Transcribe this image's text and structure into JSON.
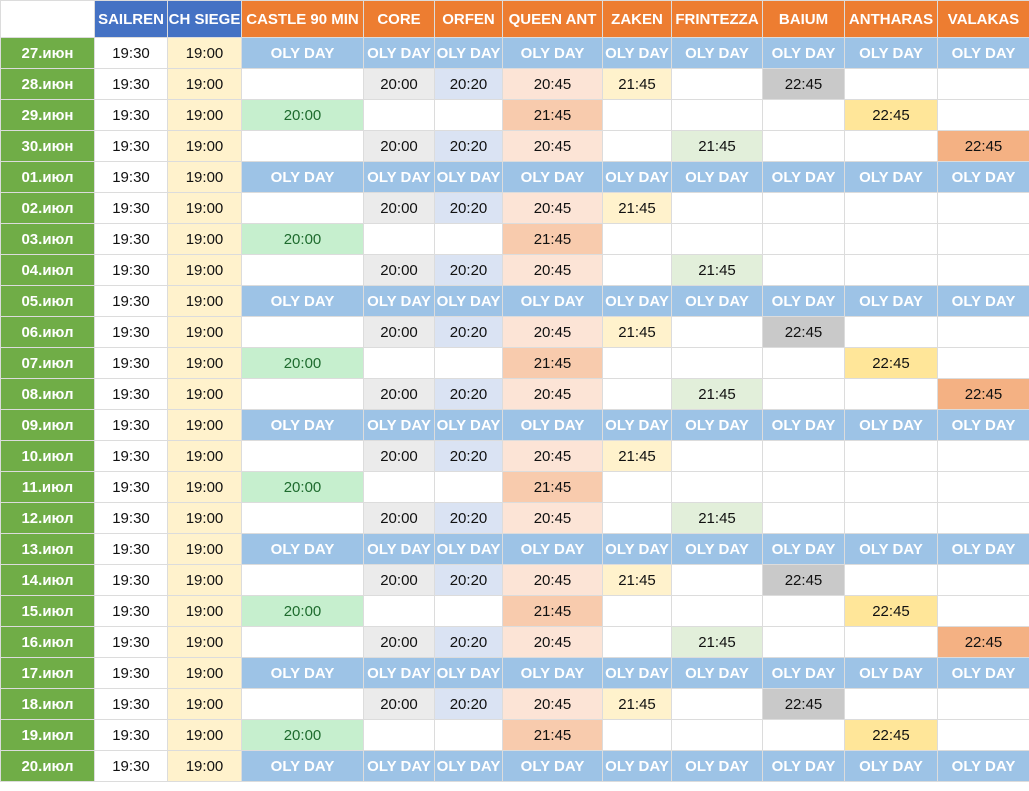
{
  "header": {
    "columns": [
      {
        "label": "SAILREN",
        "color": "#4472c4"
      },
      {
        "label": "CH SIEGE",
        "color": "#4472c4"
      },
      {
        "label": "CASTLE 90 MIN",
        "color": "#ed7d31"
      },
      {
        "label": "CORE",
        "color": "#ed7d31"
      },
      {
        "label": "ORFEN",
        "color": "#ed7d31"
      },
      {
        "label": "QUEEN ANT",
        "color": "#ed7d31"
      },
      {
        "label": "ZAKEN",
        "color": "#ed7d31"
      },
      {
        "label": "FRINTEZZA",
        "color": "#ed7d31"
      },
      {
        "label": "BAIUM",
        "color": "#ed7d31"
      },
      {
        "label": "ANTHARAS",
        "color": "#ed7d31"
      },
      {
        "label": "VALAKAS",
        "color": "#ed7d31"
      }
    ]
  },
  "sailren_time": "19:30",
  "siege_time": "19:00",
  "oly_label": "OLY DAY",
  "rows": [
    {
      "date": "27.июн",
      "pattern": "oly"
    },
    {
      "date": "28.июн",
      "pattern": "A"
    },
    {
      "date": "29.июн",
      "pattern": "B"
    },
    {
      "date": "30.июн",
      "pattern": "C"
    },
    {
      "date": "01.июл",
      "pattern": "oly"
    },
    {
      "date": "02.июл",
      "pattern": "A2"
    },
    {
      "date": "03.июл",
      "pattern": "B2"
    },
    {
      "date": "04.июл",
      "pattern": "C2"
    },
    {
      "date": "05.июл",
      "pattern": "oly"
    },
    {
      "date": "06.июл",
      "pattern": "A"
    },
    {
      "date": "07.июл",
      "pattern": "B"
    },
    {
      "date": "08.июл",
      "pattern": "C"
    },
    {
      "date": "09.июл",
      "pattern": "oly"
    },
    {
      "date": "10.июл",
      "pattern": "A2"
    },
    {
      "date": "11.июл",
      "pattern": "B2"
    },
    {
      "date": "12.июл",
      "pattern": "C2"
    },
    {
      "date": "13.июл",
      "pattern": "oly"
    },
    {
      "date": "14.июл",
      "pattern": "A"
    },
    {
      "date": "15.июл",
      "pattern": "B"
    },
    {
      "date": "16.июл",
      "pattern": "C"
    },
    {
      "date": "17.июл",
      "pattern": "oly"
    },
    {
      "date": "18.июл",
      "pattern": "A"
    },
    {
      "date": "19.июл",
      "pattern": "B"
    },
    {
      "date": "20.июл",
      "pattern": "oly"
    }
  ],
  "patterns": {
    "A": {
      "castle": "",
      "core": "20:00",
      "orfen": "20:20",
      "queen_ant": "20:45",
      "zaken": "21:45",
      "frintezza": "",
      "baium": "22:45",
      "antharas": "",
      "valakas": ""
    },
    "A2": {
      "castle": "",
      "core": "20:00",
      "orfen": "20:20",
      "queen_ant": "20:45",
      "zaken": "21:45",
      "frintezza": "",
      "baium": "",
      "antharas": "",
      "valakas": ""
    },
    "B": {
      "castle": "20:00",
      "core": "",
      "orfen": "",
      "queen_ant": "21:45",
      "zaken": "",
      "frintezza": "",
      "baium": "",
      "antharas": "22:45",
      "valakas": ""
    },
    "B2": {
      "castle": "20:00",
      "core": "",
      "orfen": "",
      "queen_ant": "21:45",
      "zaken": "",
      "frintezza": "",
      "baium": "",
      "antharas": "",
      "valakas": ""
    },
    "C": {
      "castle": "",
      "core": "20:00",
      "orfen": "20:20",
      "queen_ant": "20:45",
      "zaken": "",
      "frintezza": "21:45",
      "baium": "",
      "antharas": "",
      "valakas": "22:45"
    },
    "C2": {
      "castle": "",
      "core": "20:00",
      "orfen": "20:20",
      "queen_ant": "20:45",
      "zaken": "",
      "frintezza": "21:45",
      "baium": "",
      "antharas": "",
      "valakas": ""
    }
  }
}
